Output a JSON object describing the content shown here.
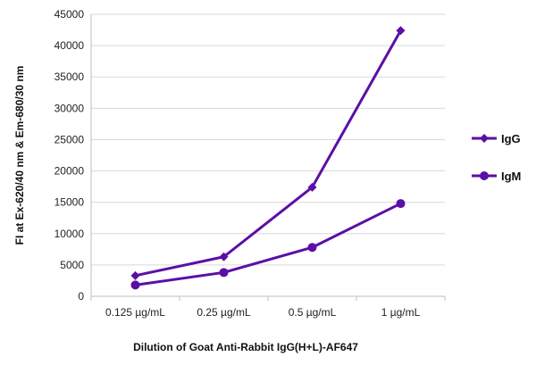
{
  "chart_data": {
    "type": "line",
    "categories": [
      "0.125 µg/mL",
      "0.25 µg/mL",
      "0.5 µg/mL",
      "1 µg/mL"
    ],
    "series": [
      {
        "name": "IgG",
        "values": [
          3300,
          6300,
          17400,
          42400
        ],
        "color": "#5B0FA6",
        "marker": "diamond"
      },
      {
        "name": "IgM",
        "values": [
          1800,
          3800,
          7800,
          14800
        ],
        "color": "#5B0FA6",
        "marker": "circle"
      }
    ],
    "xlabel": "Dilution of Goat Anti-Rabbit IgG(H+L)-AF647",
    "ylabel": "FI at Ex-620/40 nm & Em-680/30 nm",
    "ylim": [
      0,
      45000
    ],
    "yticks": [
      0,
      5000,
      10000,
      15000,
      20000,
      25000,
      30000,
      35000,
      40000,
      45000
    ],
    "grid": true,
    "legend": "right"
  }
}
